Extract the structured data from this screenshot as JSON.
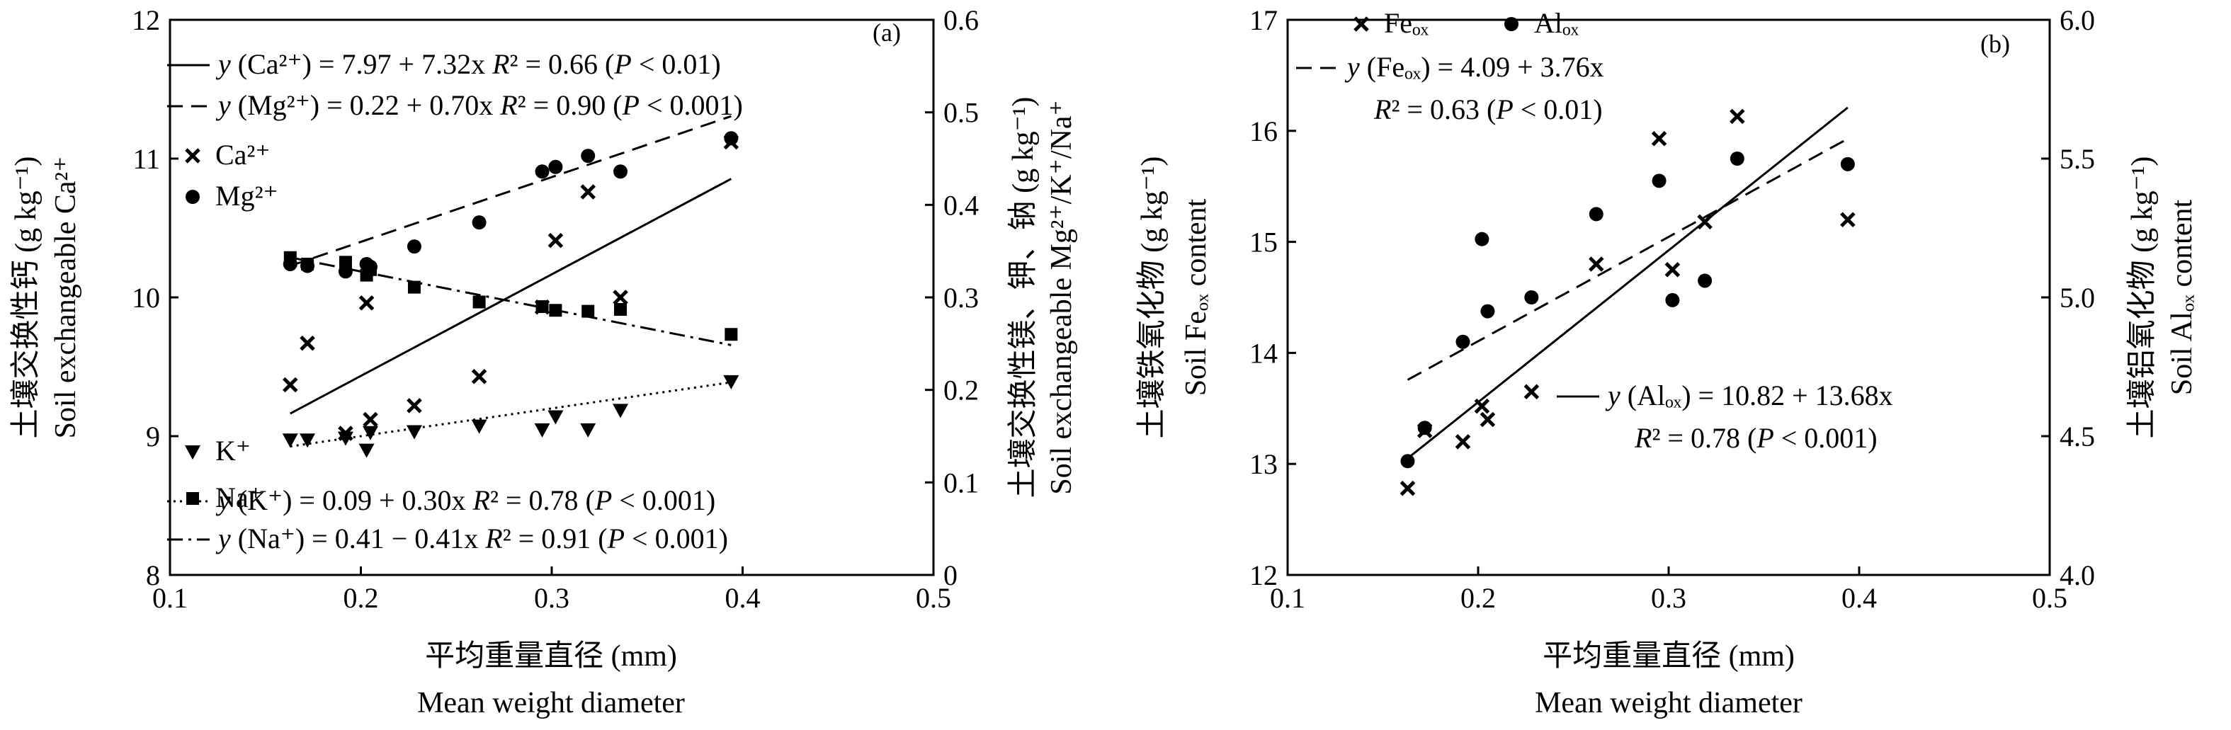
{
  "chart_data": [
    {
      "panel_label": "(a)",
      "type": "scatter",
      "xlabel_cn": "平均重量直径 (mm)",
      "xlabel_en": "Mean weight diameter",
      "ylabel_left_cn": "土壤交换性钙 (g kg⁻¹)",
      "ylabel_left_en": "Soil exchangeable Ca²⁺",
      "ylabel_right_cn": "土壤交换性镁、钾、钠 (g kg⁻¹)",
      "ylabel_right_en": "Soil exchangeable Mg²⁺/K⁺/Na⁺",
      "xlim": [
        0.1,
        0.5
      ],
      "ylim_left": [
        8,
        12
      ],
      "ylim_right": [
        0,
        0.6
      ],
      "x_ticks": [
        "0.1",
        "0.2",
        "0.3",
        "0.4",
        "0.5"
      ],
      "y_ticks_left": [
        "8",
        "9",
        "10",
        "11",
        "12"
      ],
      "y_ticks_right": [
        "0",
        "0.1",
        "0.2",
        "0.3",
        "0.4",
        "0.5",
        "0.6"
      ],
      "legend_symbols": [
        {
          "marker": "x",
          "label": "Ca²⁺"
        },
        {
          "marker": "circle",
          "label": "Mg²⁺"
        },
        {
          "marker": "triangle",
          "label": "K⁺"
        },
        {
          "marker": "square",
          "label": "Na⁺"
        }
      ],
      "equations": [
        {
          "style": "solid",
          "text": "y (Ca²⁺) = 7.97 + 7.32x R² = 0.66 (P < 0.01)"
        },
        {
          "style": "dashed",
          "text": "y (Mg²⁺) = 0.22 + 0.70x R² = 0.90 (P < 0.001)"
        },
        {
          "style": "dotted",
          "text": "y (K⁺) = 0.09 + 0.30x R² = 0.78 (P < 0.001)"
        },
        {
          "style": "dashdot",
          "text": "y (Na⁺) = 0.41 − 0.41x R² = 0.91 (P < 0.001)"
        }
      ],
      "series": [
        {
          "marker": "x",
          "axis": "left",
          "x": [
            0.163,
            0.172,
            0.192,
            0.203,
            0.205,
            0.228,
            0.262,
            0.295,
            0.302,
            0.319,
            0.336,
            0.394
          ],
          "y": [
            9.37,
            9.67,
            9.02,
            9.96,
            9.12,
            9.22,
            9.43,
            9.93,
            10.41,
            10.76,
            10.0,
            11.12
          ]
        },
        {
          "marker": "circle",
          "axis": "right",
          "x": [
            0.163,
            0.172,
            0.192,
            0.203,
            0.205,
            0.228,
            0.262,
            0.295,
            0.302,
            0.319,
            0.336,
            0.394
          ],
          "y": [
            0.336,
            0.334,
            0.328,
            0.336,
            0.333,
            0.355,
            0.381,
            0.436,
            0.441,
            0.453,
            0.436,
            0.472
          ]
        },
        {
          "marker": "triangle",
          "axis": "right",
          "x": [
            0.163,
            0.172,
            0.192,
            0.203,
            0.205,
            0.228,
            0.262,
            0.295,
            0.302,
            0.319,
            0.336,
            0.394
          ],
          "y": [
            0.146,
            0.146,
            0.148,
            0.135,
            0.154,
            0.155,
            0.161,
            0.157,
            0.171,
            0.157,
            0.178,
            0.209
          ]
        },
        {
          "marker": "square",
          "axis": "right",
          "x": [
            0.163,
            0.172,
            0.192,
            0.203,
            0.205,
            0.228,
            0.262,
            0.295,
            0.302,
            0.319,
            0.336,
            0.394
          ],
          "y": [
            0.343,
            0.336,
            0.338,
            0.324,
            0.33,
            0.311,
            0.295,
            0.29,
            0.286,
            0.285,
            0.287,
            0.26
          ]
        }
      ],
      "fits": [
        {
          "style": "solid",
          "axis": "left",
          "intercept": 7.97,
          "slope": 7.32
        },
        {
          "style": "dashed",
          "axis": "right",
          "intercept": 0.22,
          "slope": 0.7
        },
        {
          "style": "dotted",
          "axis": "right",
          "intercept": 0.09,
          "slope": 0.3
        },
        {
          "style": "dashdot",
          "axis": "right",
          "intercept": 0.41,
          "slope": -0.41
        }
      ],
      "fit_xrange": [
        0.163,
        0.394
      ]
    },
    {
      "panel_label": "(b)",
      "type": "scatter",
      "xlabel_cn": "平均重量直径 (mm)",
      "xlabel_en": "Mean weight diameter",
      "ylabel_left_cn": "土壤铁氧化物 (g kg⁻¹)",
      "ylabel_left_en": "Soil Feₒₓ content",
      "ylabel_right_cn": "土壤铝氧化物 (g kg⁻¹)",
      "ylabel_right_en": "Soil Alₒₓ content",
      "xlim": [
        0.1,
        0.5
      ],
      "ylim_left": [
        12,
        17
      ],
      "ylim_right": [
        4.0,
        6.0
      ],
      "x_ticks": [
        "0.1",
        "0.2",
        "0.3",
        "0.4",
        "0.5"
      ],
      "y_ticks_left": [
        "12",
        "13",
        "14",
        "15",
        "16",
        "17"
      ],
      "y_ticks_right": [
        "4.0",
        "4.5",
        "5.0",
        "5.5",
        "6.0"
      ],
      "legend_symbols": [
        {
          "marker": "x",
          "label": "Feₒₓ"
        },
        {
          "marker": "circle",
          "label": "Alₒₓ"
        }
      ],
      "equations": [
        {
          "style": "dashed",
          "text": "y (Feₒₓ) = 4.09 + 3.76x",
          "text2": "R² = 0.63 (P < 0.01)"
        },
        {
          "style": "solid",
          "text": "y (Alₒₓ) = 10.82 + 13.68x",
          "text2": "R² = 0.78 (P < 0.001)"
        }
      ],
      "series": [
        {
          "marker": "x",
          "axis": "left",
          "x": [
            0.163,
            0.172,
            0.192,
            0.202,
            0.205,
            0.228,
            0.262,
            0.295,
            0.302,
            0.319,
            0.336,
            0.394
          ],
          "y": [
            12.78,
            13.3,
            13.2,
            13.52,
            13.4,
            13.65,
            14.8,
            15.93,
            14.75,
            15.18,
            16.13,
            15.2
          ]
        },
        {
          "marker": "circle",
          "axis": "right",
          "x": [
            0.163,
            0.172,
            0.192,
            0.202,
            0.205,
            0.228,
            0.262,
            0.295,
            0.302,
            0.319,
            0.336,
            0.394
          ],
          "y": [
            4.41,
            4.53,
            4.84,
            5.21,
            4.95,
            5.0,
            5.3,
            5.42,
            4.99,
            5.06,
            5.5,
            5.48
          ]
        }
      ],
      "fits": [
        {
          "style": "solid",
          "axis": "left",
          "intercept": 10.82,
          "slope": 13.68
        },
        {
          "style": "dashed",
          "axis": "right",
          "intercept": 4.09,
          "slope": 3.76
        }
      ],
      "fit_xrange": [
        0.163,
        0.394
      ]
    }
  ]
}
